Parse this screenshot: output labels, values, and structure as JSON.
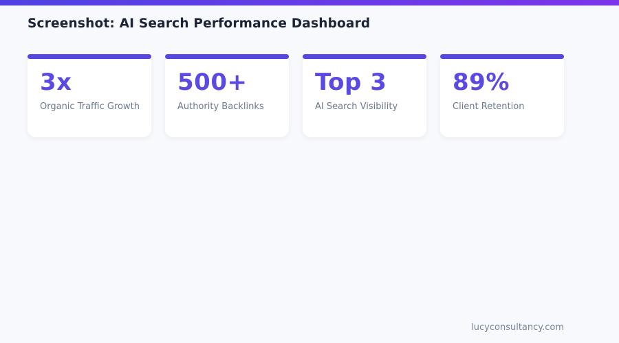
{
  "page": {
    "title": "Screenshot: AI Search Performance Dashboard",
    "footer": "lucyconsultancy.com"
  },
  "theme": {
    "topbar_gradient_start": "#4f42e2",
    "topbar_gradient_end": "#7c35e8",
    "card_accent": "#5547e0",
    "stat_value_color": "#5a4ae2",
    "background": "#f8f9fc",
    "card_background": "#ffffff",
    "title_color": "#1b2437",
    "label_color": "#6b7a90",
    "footer_color": "#74859e"
  },
  "stats": [
    {
      "value": "3x",
      "label": "Organic Traffic Growth"
    },
    {
      "value": "500+",
      "label": "Authority Backlinks"
    },
    {
      "value": "Top 3",
      "label": "AI Search Visibility"
    },
    {
      "value": "89%",
      "label": "Client Retention"
    }
  ]
}
